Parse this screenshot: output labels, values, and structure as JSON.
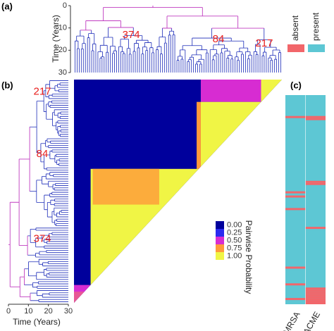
{
  "chart_data": [
    {
      "type": "dendrogram",
      "panel_label": "(a)",
      "y_label": "Time (Years)",
      "ylim": [
        0,
        30
      ],
      "yticks": [
        0,
        10,
        20,
        30
      ],
      "tips": [
        0,
        99
      ],
      "clades": [
        {
          "label": "374",
          "tip": 72
        },
        {
          "label": "84",
          "tip": 30
        },
        {
          "label": "217",
          "tip": 8
        }
      ]
    },
    {
      "type": "heatmap",
      "panel_label": "(b)",
      "x_label": "Time (Years)",
      "xlim": [
        0,
        30
      ],
      "xticks": [
        0,
        10,
        20,
        30
      ],
      "tips": [
        0,
        99
      ],
      "clades": [
        {
          "label": "217",
          "tip": 5
        },
        {
          "label": "84",
          "tip": 33
        },
        {
          "label": "374",
          "tip": 71
        }
      ],
      "blocks": [
        {
          "rows": [
            0,
            99
          ],
          "cols": [
            0,
            99
          ],
          "value": 0
        },
        {
          "rows": [
            0,
            9
          ],
          "cols": [
            0,
            9
          ],
          "value": 1
        },
        {
          "rows": [
            0,
            9
          ],
          "cols": [
            10,
            38
          ],
          "value": 0.5
        },
        {
          "rows": [
            10,
            38
          ],
          "cols": [
            10,
            38
          ],
          "value": 1
        },
        {
          "rows": [
            10,
            39
          ],
          "cols": [
            39,
            40
          ],
          "value": 0.75
        },
        {
          "rows": [
            40,
            91
          ],
          "cols": [
            40,
            91
          ],
          "value": 1
        },
        {
          "rows": [
            40,
            55
          ],
          "cols": [
            59,
            90
          ],
          "value": 0.8
        },
        {
          "rows": [
            92,
            96
          ],
          "cols": [
            92,
            99
          ],
          "value": 0.5
        },
        {
          "rows": [
            95,
            99
          ],
          "cols": [
            95,
            99
          ],
          "value": 0.6
        }
      ],
      "legend": {
        "title": "Pairwise Probability",
        "ticks": [
          {
            "value": 0,
            "label": "0.00"
          },
          {
            "value": 0.25,
            "label": "0.25"
          },
          {
            "value": 0.5,
            "label": "0.50"
          },
          {
            "value": 0.75,
            "label": "0.75"
          },
          {
            "value": 1,
            "label": "1.00"
          }
        ],
        "colors": [
          "#00009c",
          "#2a2af0",
          "#d72cd2",
          "#ff9a3a",
          "#f0f545"
        ]
      }
    },
    {
      "type": "presence",
      "panel_label": "(c)",
      "tips": [
        0,
        99
      ],
      "categories": [
        "MRSA",
        "ACME"
      ],
      "legend": [
        {
          "name": "absent",
          "color": "#f2666a"
        },
        {
          "name": "present",
          "color": "#5dc7d4"
        }
      ],
      "absent_tips": [
        [
          10,
          46,
          48,
          54,
          82,
          90,
          97
        ],
        [
          10,
          11,
          41,
          42,
          63,
          92,
          93,
          94,
          95,
          96,
          97,
          98,
          99
        ]
      ]
    }
  ]
}
